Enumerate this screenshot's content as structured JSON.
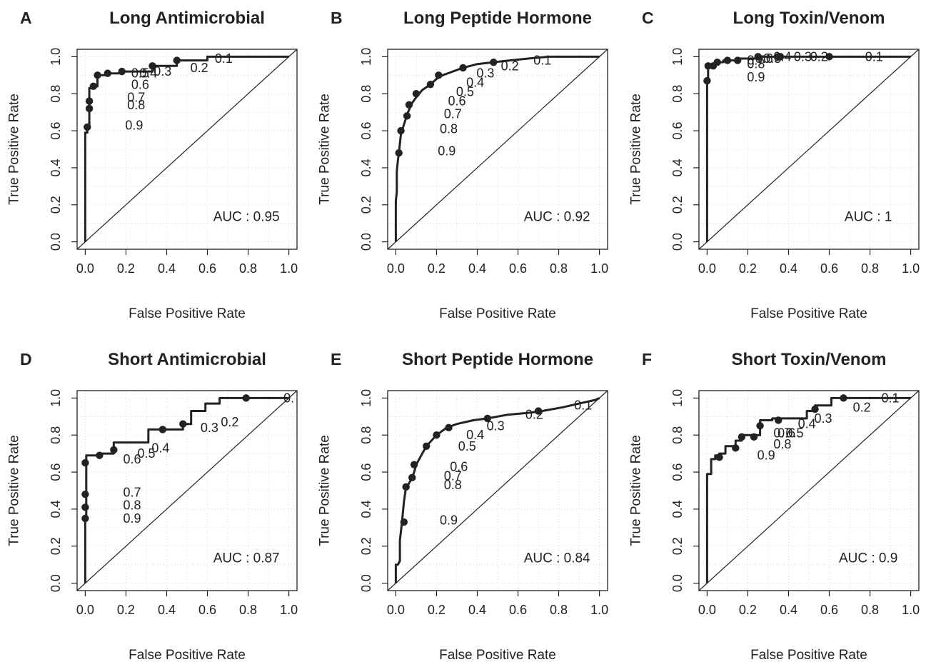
{
  "figure": {
    "colors": {
      "curve": "#222222",
      "axis": "#222222",
      "grid": "#cfcfcf",
      "background": "#ffffff"
    }
  },
  "chart_data": [
    {
      "type": "line",
      "panel_letter": "A",
      "title": "Long Antimicrobial",
      "xlabel": "False Positive Rate",
      "ylabel": "True Positive Rate",
      "xlim": [
        0,
        1
      ],
      "ylim": [
        0,
        1
      ],
      "x_ticks": [
        "0.0",
        "0.2",
        "0.4",
        "0.6",
        "0.8",
        "1.0"
      ],
      "y_ticks": [
        "0.0",
        "0.2",
        "0.4",
        "0.6",
        "0.8",
        "1.0"
      ],
      "grid": true,
      "diagonal": true,
      "auc_label": "AUC : 0.95",
      "roc_curve": {
        "x": [
          0,
          0,
          0.01,
          0.01,
          0.02,
          0.02,
          0.02,
          0.02,
          0.04,
          0.04,
          0.06,
          0.06,
          0.11,
          0.11,
          0.18,
          0.18,
          0.33,
          0.33,
          0.45,
          0.45,
          0.6,
          0.6,
          1.0
        ],
        "y": [
          0,
          0.59,
          0.59,
          0.62,
          0.62,
          0.72,
          0.76,
          0.83,
          0.83,
          0.84,
          0.84,
          0.9,
          0.9,
          0.91,
          0.91,
          0.92,
          0.92,
          0.95,
          0.95,
          0.98,
          0.98,
          1.0,
          1.0
        ]
      },
      "cutoff_points": {
        "x": [
          0.01,
          0.02,
          0.02,
          0.04,
          0.06,
          0.11,
          0.18,
          0.33,
          0.45
        ],
        "y": [
          0.62,
          0.72,
          0.76,
          0.84,
          0.9,
          0.91,
          0.92,
          0.95,
          0.98
        ]
      },
      "threshold_labels": [
        {
          "text": "0.1",
          "x": 0.68,
          "y": 0.99
        },
        {
          "text": "0.2",
          "x": 0.56,
          "y": 0.94
        },
        {
          "text": "0.3",
          "x": 0.38,
          "y": 0.92
        },
        {
          "text": "0.4",
          "x": 0.31,
          "y": 0.91
        },
        {
          "text": "0.5",
          "x": 0.27,
          "y": 0.91
        },
        {
          "text": "0.6",
          "x": 0.27,
          "y": 0.85
        },
        {
          "text": "0.7",
          "x": 0.25,
          "y": 0.78
        },
        {
          "text": "0.8",
          "x": 0.25,
          "y": 0.74
        },
        {
          "text": "0.9",
          "x": 0.24,
          "y": 0.63
        }
      ]
    },
    {
      "type": "line",
      "panel_letter": "B",
      "title": "Long Peptide Hormone",
      "xlabel": "False Positive Rate",
      "ylabel": "True Positive Rate",
      "xlim": [
        0,
        1
      ],
      "ylim": [
        0,
        1
      ],
      "x_ticks": [
        "0.0",
        "0.2",
        "0.4",
        "0.6",
        "0.8",
        "1.0"
      ],
      "y_ticks": [
        "0.0",
        "0.2",
        "0.4",
        "0.6",
        "0.8",
        "1.0"
      ],
      "grid": true,
      "diagonal": true,
      "auc_label": "AUC : 0.92",
      "roc_curve": {
        "x": [
          0,
          0,
          0.005,
          0.005,
          0.01,
          0.015,
          0.02,
          0.025,
          0.03,
          0.045,
          0.06,
          0.08,
          0.1,
          0.13,
          0.17,
          0.2,
          0.23,
          0.28,
          0.33,
          0.4,
          0.48,
          0.56,
          0.65,
          0.75,
          0.85,
          1.0
        ],
        "y": [
          0,
          0.22,
          0.27,
          0.38,
          0.44,
          0.48,
          0.53,
          0.58,
          0.6,
          0.65,
          0.7,
          0.75,
          0.78,
          0.82,
          0.85,
          0.88,
          0.9,
          0.92,
          0.94,
          0.96,
          0.97,
          0.98,
          0.99,
          1.0,
          1.0,
          1.0
        ]
      },
      "cutoff_points": {
        "x": [
          0.015,
          0.025,
          0.055,
          0.065,
          0.1,
          0.17,
          0.21,
          0.33,
          0.48
        ],
        "y": [
          0.48,
          0.6,
          0.68,
          0.74,
          0.8,
          0.85,
          0.9,
          0.94,
          0.97
        ]
      },
      "threshold_labels": [
        {
          "text": "0.1",
          "x": 0.72,
          "y": 0.98
        },
        {
          "text": "0.2",
          "x": 0.56,
          "y": 0.95
        },
        {
          "text": "0.3",
          "x": 0.44,
          "y": 0.91
        },
        {
          "text": "0.4",
          "x": 0.39,
          "y": 0.86
        },
        {
          "text": "0.5",
          "x": 0.34,
          "y": 0.81
        },
        {
          "text": "0.6",
          "x": 0.3,
          "y": 0.76
        },
        {
          "text": "0.7",
          "x": 0.28,
          "y": 0.69
        },
        {
          "text": "0.8",
          "x": 0.26,
          "y": 0.61
        },
        {
          "text": "0.9",
          "x": 0.25,
          "y": 0.49
        }
      ]
    },
    {
      "type": "line",
      "panel_letter": "C",
      "title": "Long Toxin/Venom",
      "xlabel": "False Positive Rate",
      "ylabel": "True Positive Rate",
      "xlim": [
        0,
        1
      ],
      "ylim": [
        0,
        1
      ],
      "x_ticks": [
        "0.0",
        "0.2",
        "0.4",
        "0.6",
        "0.8",
        "1.0"
      ],
      "y_ticks": [
        "0.0",
        "0.2",
        "0.4",
        "0.6",
        "0.8",
        "1.0"
      ],
      "grid": true,
      "diagonal": true,
      "auc_label": "AUC : 1",
      "roc_curve": {
        "x": [
          0,
          0,
          0.005,
          0.005,
          0.04,
          0.04,
          0.08,
          0.08,
          0.15,
          0.15,
          0.25,
          0.25,
          0.35,
          0.35,
          0.6,
          1.0
        ],
        "y": [
          0,
          0.87,
          0.87,
          0.95,
          0.95,
          0.97,
          0.97,
          0.98,
          0.98,
          0.99,
          0.99,
          1.0,
          1.0,
          1.0,
          1.0,
          1.0
        ]
      },
      "cutoff_points": {
        "x": [
          0.0,
          0.005,
          0.03,
          0.05,
          0.1,
          0.15,
          0.25,
          0.35,
          0.36,
          0.6
        ],
        "y": [
          0.87,
          0.95,
          0.95,
          0.97,
          0.98,
          0.98,
          1.0,
          1.0,
          1.0,
          1.0
        ]
      },
      "threshold_labels": [
        {
          "text": "0.1",
          "x": 0.82,
          "y": 1.0
        },
        {
          "text": "0.2",
          "x": 0.55,
          "y": 1.0
        },
        {
          "text": "0.3",
          "x": 0.47,
          "y": 1.0
        },
        {
          "text": "0.4",
          "x": 0.37,
          "y": 1.0
        },
        {
          "text": "0.5",
          "x": 0.32,
          "y": 0.99
        },
        {
          "text": "0.6",
          "x": 0.28,
          "y": 0.99
        },
        {
          "text": "0.7",
          "x": 0.24,
          "y": 0.98
        },
        {
          "text": "0.8",
          "x": 0.24,
          "y": 0.96
        },
        {
          "text": "0.9",
          "x": 0.24,
          "y": 0.89
        }
      ]
    },
    {
      "type": "line",
      "panel_letter": "D",
      "title": "Short Antimicrobial",
      "xlabel": "False Positive Rate",
      "ylabel": "True Positive Rate",
      "xlim": [
        0,
        1
      ],
      "ylim": [
        0,
        1
      ],
      "x_ticks": [
        "0.0",
        "0.2",
        "0.4",
        "0.6",
        "0.8",
        "1.0"
      ],
      "y_ticks": [
        "0.0",
        "0.2",
        "0.4",
        "0.6",
        "0.8",
        "1.0"
      ],
      "grid": true,
      "diagonal": true,
      "auc_label": "AUC : 0.87",
      "roc_curve": {
        "x": [
          0,
          0,
          0.005,
          0.005,
          0.07,
          0.07,
          0.14,
          0.14,
          0.31,
          0.31,
          0.48,
          0.48,
          0.52,
          0.52,
          0.59,
          0.59,
          0.66,
          0.66,
          1.0
        ],
        "y": [
          0,
          0.34,
          0.34,
          0.69,
          0.69,
          0.7,
          0.7,
          0.76,
          0.76,
          0.83,
          0.83,
          0.86,
          0.86,
          0.93,
          0.93,
          0.97,
          0.97,
          1.0,
          1.0
        ]
      },
      "cutoff_points": {
        "x": [
          0.0,
          0.0,
          0.0,
          0.0,
          0.07,
          0.14,
          0.38,
          0.48,
          0.79
        ],
        "y": [
          0.35,
          0.41,
          0.48,
          0.65,
          0.69,
          0.72,
          0.83,
          0.86,
          1.0
        ]
      },
      "threshold_labels": [
        {
          "text": "0.",
          "x": 1.0,
          "y": 1.0
        },
        {
          "text": "0.2",
          "x": 0.71,
          "y": 0.87
        },
        {
          "text": "0.3",
          "x": 0.61,
          "y": 0.84
        },
        {
          "text": "0.4",
          "x": 0.37,
          "y": 0.73
        },
        {
          "text": "0.5",
          "x": 0.3,
          "y": 0.7
        },
        {
          "text": "0.6",
          "x": 0.23,
          "y": 0.67
        },
        {
          "text": "0.7",
          "x": 0.23,
          "y": 0.49
        },
        {
          "text": "0.8",
          "x": 0.23,
          "y": 0.42
        },
        {
          "text": "0.9",
          "x": 0.23,
          "y": 0.35
        }
      ]
    },
    {
      "type": "line",
      "panel_letter": "E",
      "title": "Short Peptide Hormone",
      "xlabel": "False Positive Rate",
      "ylabel": "True Positive Rate",
      "xlim": [
        0,
        1
      ],
      "ylim": [
        0,
        1
      ],
      "x_ticks": [
        "0.0",
        "0.2",
        "0.4",
        "0.6",
        "0.8",
        "1.0"
      ],
      "y_ticks": [
        "0.0",
        "0.2",
        "0.4",
        "0.6",
        "0.8",
        "1.0"
      ],
      "grid": true,
      "diagonal": true,
      "auc_label": "AUC : 0.84",
      "roc_curve": {
        "x": [
          0,
          0,
          0.01,
          0.02,
          0.02,
          0.03,
          0.04,
          0.05,
          0.06,
          0.08,
          0.09,
          0.1,
          0.12,
          0.15,
          0.2,
          0.25,
          0.3,
          0.38,
          0.45,
          0.55,
          0.65,
          0.72,
          0.82,
          0.9,
          0.98,
          1.0
        ],
        "y": [
          0,
          0.1,
          0.1,
          0.12,
          0.23,
          0.33,
          0.44,
          0.52,
          0.53,
          0.57,
          0.6,
          0.64,
          0.68,
          0.74,
          0.8,
          0.84,
          0.86,
          0.88,
          0.89,
          0.91,
          0.92,
          0.93,
          0.95,
          0.97,
          0.99,
          1.0
        ]
      },
      "cutoff_points": {
        "x": [
          0.04,
          0.05,
          0.08,
          0.09,
          0.15,
          0.2,
          0.26,
          0.45,
          0.7
        ],
        "y": [
          0.33,
          0.52,
          0.57,
          0.64,
          0.74,
          0.8,
          0.84,
          0.89,
          0.93
        ]
      },
      "threshold_labels": [
        {
          "text": "0.1",
          "x": 0.92,
          "y": 0.96
        },
        {
          "text": "0.2",
          "x": 0.68,
          "y": 0.91
        },
        {
          "text": "0.3",
          "x": 0.49,
          "y": 0.85
        },
        {
          "text": "0.4",
          "x": 0.39,
          "y": 0.8
        },
        {
          "text": "0.5",
          "x": 0.35,
          "y": 0.74
        },
        {
          "text": "0.6",
          "x": 0.31,
          "y": 0.63
        },
        {
          "text": "0.7",
          "x": 0.28,
          "y": 0.58
        },
        {
          "text": "0.8",
          "x": 0.28,
          "y": 0.53
        },
        {
          "text": "0.9",
          "x": 0.26,
          "y": 0.34
        }
      ]
    },
    {
      "type": "line",
      "panel_letter": "F",
      "title": "Short Toxin/Venom",
      "xlabel": "False Positive Rate",
      "ylabel": "True Positive Rate",
      "xlim": [
        0,
        1
      ],
      "ylim": [
        0,
        1
      ],
      "x_ticks": [
        "0.0",
        "0.2",
        "0.4",
        "0.6",
        "0.8",
        "1.0"
      ],
      "y_ticks": [
        "0.0",
        "0.2",
        "0.4",
        "0.6",
        "0.8",
        "1.0"
      ],
      "grid": true,
      "diagonal": true,
      "auc_label": "AUC : 0.9",
      "roc_curve": {
        "x": [
          0,
          0,
          0.02,
          0.02,
          0.04,
          0.04,
          0.06,
          0.06,
          0.09,
          0.09,
          0.14,
          0.14,
          0.17,
          0.17,
          0.26,
          0.26,
          0.32,
          0.32,
          0.49,
          0.49,
          0.53,
          0.53,
          0.61,
          0.61,
          0.82,
          0.82,
          1.0
        ],
        "y": [
          0,
          0.59,
          0.59,
          0.67,
          0.67,
          0.69,
          0.69,
          0.7,
          0.7,
          0.74,
          0.74,
          0.77,
          0.77,
          0.8,
          0.8,
          0.88,
          0.88,
          0.89,
          0.89,
          0.93,
          0.93,
          0.96,
          0.96,
          1.0,
          1.0,
          1.0,
          1.0
        ]
      },
      "cutoff_points": {
        "x": [
          0.06,
          0.14,
          0.17,
          0.23,
          0.26,
          0.35,
          0.53,
          0.67
        ],
        "y": [
          0.68,
          0.73,
          0.79,
          0.79,
          0.85,
          0.88,
          0.94,
          1.0
        ]
      },
      "threshold_labels": [
        {
          "text": "0.1",
          "x": 0.9,
          "y": 1.0
        },
        {
          "text": "0.2",
          "x": 0.76,
          "y": 0.95
        },
        {
          "text": "0.3",
          "x": 0.57,
          "y": 0.89
        },
        {
          "text": "0.4",
          "x": 0.49,
          "y": 0.86
        },
        {
          "text": "0.5",
          "x": 0.43,
          "y": 0.81
        },
        {
          "text": "0.6",
          "x": 0.39,
          "y": 0.81
        },
        {
          "text": "0.7",
          "x": 0.37,
          "y": 0.81
        },
        {
          "text": "0.8",
          "x": 0.37,
          "y": 0.75
        },
        {
          "text": "0.9",
          "x": 0.29,
          "y": 0.69
        }
      ]
    }
  ]
}
